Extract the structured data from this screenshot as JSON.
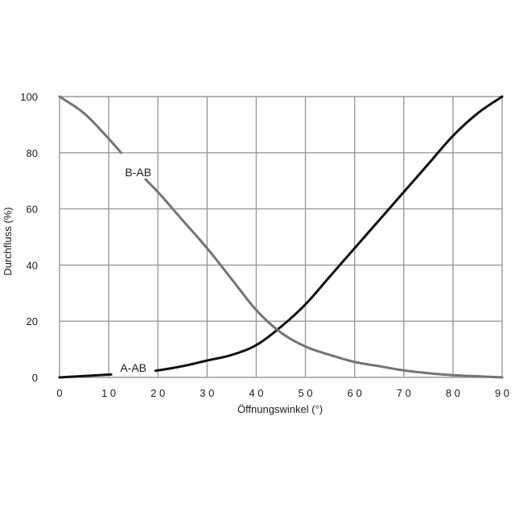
{
  "chart_data": {
    "type": "line",
    "xlabel": "Öffnungswinkel (°)",
    "ylabel": "Durchfluss (%)",
    "xlim": [
      0,
      90
    ],
    "ylim": [
      0,
      100
    ],
    "x_ticks": [
      0,
      10,
      20,
      30,
      40,
      50,
      60,
      70,
      80,
      90
    ],
    "y_ticks": [
      0,
      20,
      40,
      60,
      80,
      100
    ],
    "x_tick_labels": [
      "0",
      "1 0",
      "2 0",
      "3 0",
      "4 0",
      "5 0",
      "6 0",
      "7 0",
      "8 0",
      "9 0"
    ],
    "y_tick_labels": [
      "0",
      "20",
      "40",
      "60",
      "80",
      "100"
    ],
    "grid": true,
    "series": [
      {
        "name": "A-AB",
        "color": "#111111",
        "x": [
          0,
          5,
          10,
          15,
          20,
          25,
          30,
          35,
          40,
          45,
          50,
          55,
          60,
          65,
          70,
          75,
          80,
          85,
          90
        ],
        "y": [
          0,
          0.5,
          1,
          1.5,
          2.5,
          4,
          6,
          8,
          11.5,
          18,
          26,
          36,
          46,
          56,
          66,
          76,
          86,
          94,
          100
        ],
        "label_at": [
          15,
          3.5
        ],
        "gaps": [
          [
            10.5,
            19.5
          ]
        ]
      },
      {
        "name": "B-AB",
        "color": "#6e7675",
        "x": [
          0,
          5,
          10,
          15,
          20,
          25,
          30,
          35,
          40,
          45,
          50,
          55,
          60,
          65,
          70,
          75,
          80,
          85,
          90
        ],
        "y": [
          100,
          94,
          85,
          75,
          66,
          56,
          46,
          35,
          24,
          16,
          11,
          8,
          5.5,
          4,
          2.5,
          1.5,
          0.8,
          0.4,
          0
        ],
        "label_at": [
          16,
          73
        ],
        "gaps": [
          [
            12.5,
            17.5
          ]
        ]
      }
    ]
  }
}
